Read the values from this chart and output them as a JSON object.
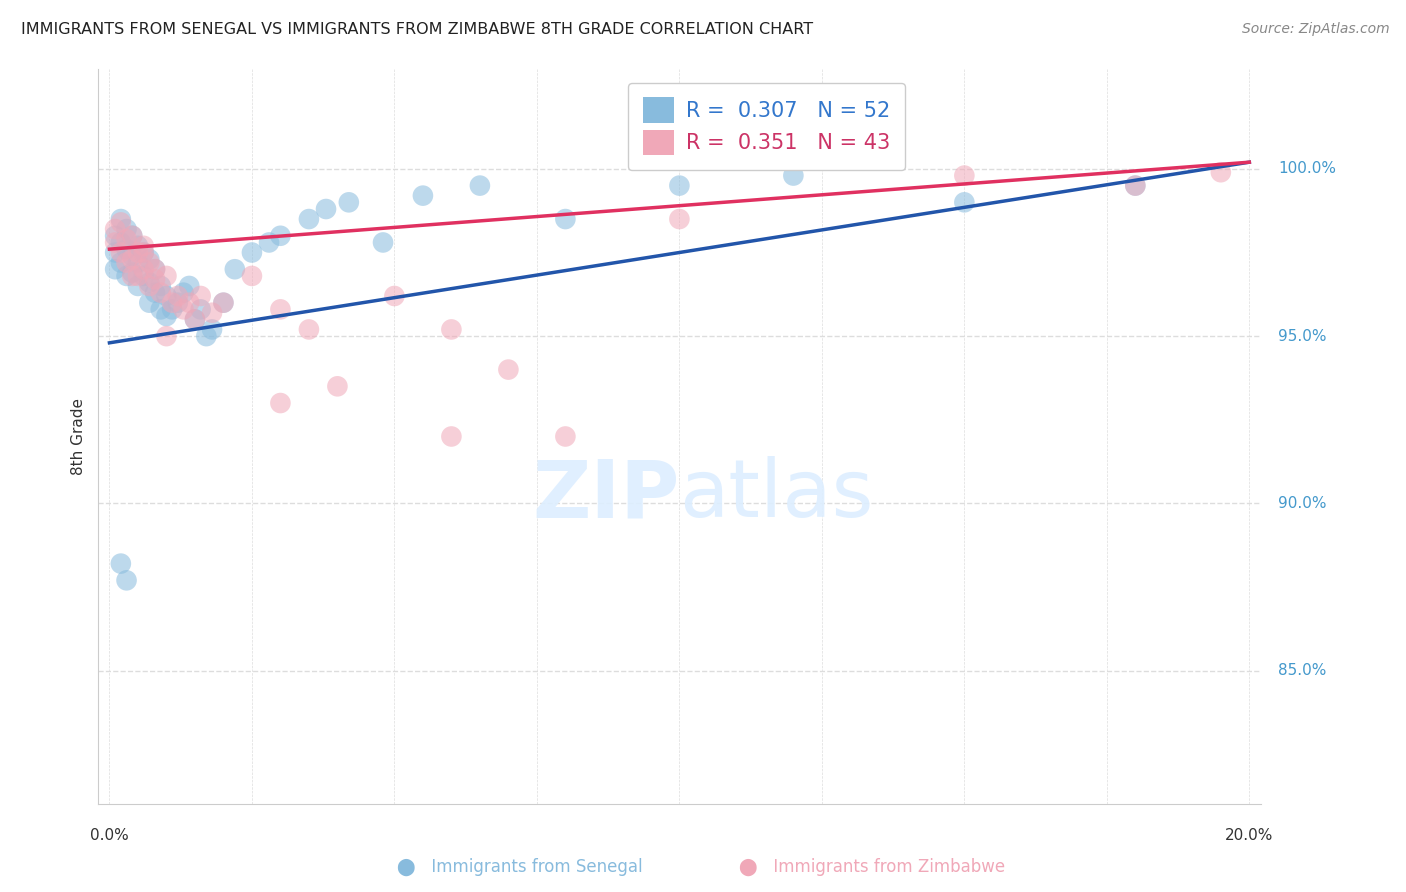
{
  "title": "IMMIGRANTS FROM SENEGAL VS IMMIGRANTS FROM ZIMBABWE 8TH GRADE CORRELATION CHART",
  "source": "Source: ZipAtlas.com",
  "ylabel": "8th Grade",
  "blue_color": "#88bbdd",
  "pink_color": "#f0a8b8",
  "blue_line_color": "#2255aa",
  "pink_line_color": "#e03060",
  "background_color": "#ffffff",
  "grid_color": "#dddddd",
  "legend_blue_r": "0.307",
  "legend_blue_n": "52",
  "legend_pink_r": "0.351",
  "legend_pink_n": "43",
  "xlim": [
    -0.002,
    0.202
  ],
  "ylim": [
    0.81,
    1.03
  ],
  "ytick_positions": [
    0.85,
    0.9,
    0.95,
    1.0
  ],
  "ytick_labels": [
    "85.0%",
    "90.0%",
    "95.0%",
    "100.0%"
  ],
  "senegal_x": [
    0.001,
    0.001,
    0.001,
    0.002,
    0.002,
    0.002,
    0.003,
    0.003,
    0.003,
    0.004,
    0.004,
    0.004,
    0.005,
    0.005,
    0.005,
    0.006,
    0.006,
    0.007,
    0.007,
    0.007,
    0.008,
    0.008,
    0.009,
    0.009,
    0.01,
    0.01,
    0.011,
    0.012,
    0.013,
    0.014,
    0.015,
    0.016,
    0.017,
    0.018,
    0.02,
    0.022,
    0.025,
    0.028,
    0.03,
    0.035,
    0.038,
    0.042,
    0.048,
    0.055,
    0.065,
    0.08,
    0.1,
    0.12,
    0.15,
    0.18,
    0.002,
    0.003
  ],
  "senegal_y": [
    0.98,
    0.975,
    0.97,
    0.985,
    0.978,
    0.972,
    0.982,
    0.976,
    0.968,
    0.98,
    0.974,
    0.969,
    0.977,
    0.972,
    0.965,
    0.975,
    0.968,
    0.973,
    0.966,
    0.96,
    0.97,
    0.963,
    0.965,
    0.958,
    0.962,
    0.956,
    0.958,
    0.96,
    0.963,
    0.965,
    0.955,
    0.958,
    0.95,
    0.952,
    0.96,
    0.97,
    0.975,
    0.978,
    0.98,
    0.985,
    0.988,
    0.99,
    0.978,
    0.992,
    0.995,
    0.985,
    0.995,
    0.998,
    0.99,
    0.995,
    0.882,
    0.877
  ],
  "zimbabwe_x": [
    0.001,
    0.001,
    0.002,
    0.002,
    0.003,
    0.003,
    0.004,
    0.004,
    0.005,
    0.005,
    0.006,
    0.006,
    0.007,
    0.007,
    0.008,
    0.009,
    0.01,
    0.011,
    0.012,
    0.013,
    0.014,
    0.015,
    0.016,
    0.018,
    0.02,
    0.025,
    0.03,
    0.035,
    0.04,
    0.05,
    0.06,
    0.07,
    0.08,
    0.1,
    0.15,
    0.18,
    0.195,
    0.004,
    0.006,
    0.008,
    0.01,
    0.03,
    0.06
  ],
  "zimbabwe_y": [
    0.982,
    0.978,
    0.984,
    0.975,
    0.979,
    0.972,
    0.98,
    0.973,
    0.975,
    0.968,
    0.977,
    0.97,
    0.972,
    0.965,
    0.967,
    0.963,
    0.968,
    0.96,
    0.962,
    0.958,
    0.96,
    0.955,
    0.962,
    0.957,
    0.96,
    0.968,
    0.958,
    0.952,
    0.935,
    0.962,
    0.952,
    0.94,
    0.92,
    0.985,
    0.998,
    0.995,
    0.999,
    0.968,
    0.975,
    0.97,
    0.95,
    0.93,
    0.92
  ]
}
